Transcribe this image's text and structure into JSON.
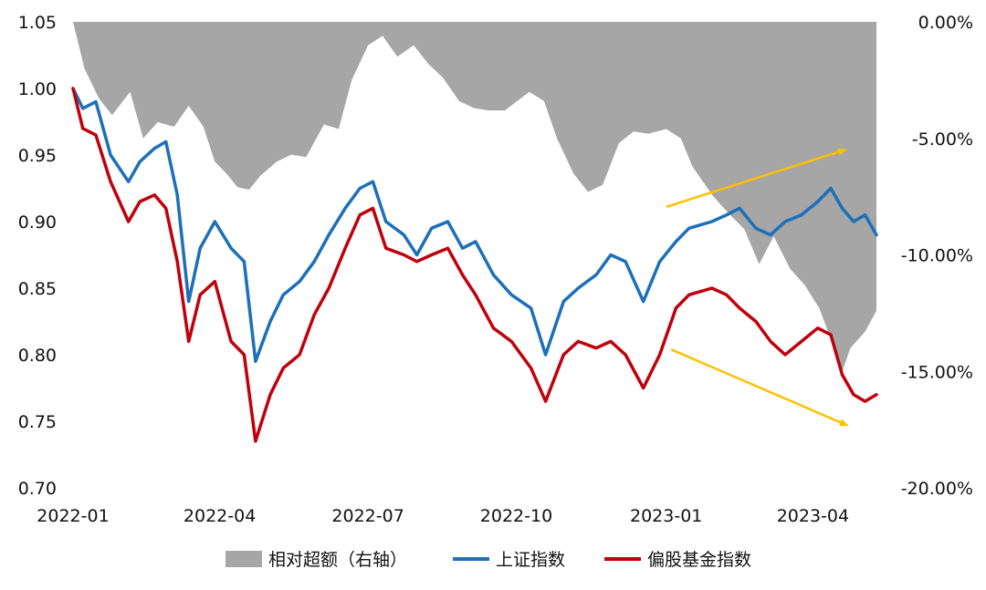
{
  "chart_data": {
    "type": "line",
    "title": "",
    "xlabel": "",
    "ylabel": "",
    "y_left": {
      "min": 0.7,
      "max": 1.05,
      "ticks": [
        "0.70",
        "0.75",
        "0.80",
        "0.85",
        "0.90",
        "0.95",
        "1.00",
        "1.05"
      ]
    },
    "y_right": {
      "min": -20.0,
      "max": 0.0,
      "ticks": [
        "0.00%",
        "-5.00%",
        "-10.00%",
        "-15.00%",
        "-20.00%"
      ]
    },
    "x_range": [
      "2022-01-04",
      "2023-05-12"
    ],
    "x_ticks": [
      {
        "date": "2022-01-04",
        "label": "2022-01"
      },
      {
        "date": "2022-04-04",
        "label": "2022-04"
      },
      {
        "date": "2022-07-04",
        "label": "2022-07"
      },
      {
        "date": "2022-10-03",
        "label": "2022-10"
      },
      {
        "date": "2023-01-03",
        "label": "2023-01"
      },
      {
        "date": "2023-04-03",
        "label": "2023-04"
      }
    ],
    "grid": false,
    "legend_position": "bottom",
    "series": [
      {
        "name": "相对超额（右轴）",
        "type": "area",
        "axis": "right",
        "color": "#a6a6a6",
        "points": [
          [
            "2022-01-04",
            0.0
          ],
          [
            "2022-01-11",
            -2.0
          ],
          [
            "2022-01-20",
            -3.3
          ],
          [
            "2022-01-28",
            -4.0
          ],
          [
            "2022-02-08",
            -3.0
          ],
          [
            "2022-02-16",
            -5.0
          ],
          [
            "2022-02-25",
            -4.3
          ],
          [
            "2022-03-07",
            -4.5
          ],
          [
            "2022-03-16",
            -3.6
          ],
          [
            "2022-03-25",
            -4.5
          ],
          [
            "2022-04-01",
            -6.0
          ],
          [
            "2022-04-08",
            -6.5
          ],
          [
            "2022-04-15",
            -7.1
          ],
          [
            "2022-04-22",
            -7.2
          ],
          [
            "2022-04-29",
            -6.6
          ],
          [
            "2022-05-09",
            -6.0
          ],
          [
            "2022-05-18",
            -5.7
          ],
          [
            "2022-05-27",
            -5.8
          ],
          [
            "2022-06-07",
            -4.4
          ],
          [
            "2022-06-16",
            -4.6
          ],
          [
            "2022-06-24",
            -2.5
          ],
          [
            "2022-07-04",
            -1.0
          ],
          [
            "2022-07-13",
            -0.6
          ],
          [
            "2022-07-22",
            -1.5
          ],
          [
            "2022-08-01",
            -1.0
          ],
          [
            "2022-08-10",
            -1.8
          ],
          [
            "2022-08-19",
            -2.4
          ],
          [
            "2022-08-29",
            -3.4
          ],
          [
            "2022-09-07",
            -3.7
          ],
          [
            "2022-09-16",
            -3.8
          ],
          [
            "2022-09-26",
            -3.8
          ],
          [
            "2022-10-11",
            -3.0
          ],
          [
            "2022-10-20",
            -3.4
          ],
          [
            "2022-10-28",
            -5.0
          ],
          [
            "2022-11-07",
            -6.5
          ],
          [
            "2022-11-16",
            -7.3
          ],
          [
            "2022-11-25",
            -7.0
          ],
          [
            "2022-12-05",
            -5.2
          ],
          [
            "2022-12-14",
            -4.7
          ],
          [
            "2022-12-23",
            -4.8
          ],
          [
            "2023-01-03",
            -4.6
          ],
          [
            "2023-01-12",
            -5.0
          ],
          [
            "2023-01-19",
            -6.2
          ],
          [
            "2023-02-01",
            -7.5
          ],
          [
            "2023-02-10",
            -8.2
          ],
          [
            "2023-02-20",
            -8.9
          ],
          [
            "2023-03-01",
            -10.4
          ],
          [
            "2023-03-10",
            -9.2
          ],
          [
            "2023-03-20",
            -10.6
          ],
          [
            "2023-03-29",
            -11.3
          ],
          [
            "2023-04-07",
            -12.3
          ],
          [
            "2023-04-14",
            -13.6
          ],
          [
            "2023-04-21",
            -15.0
          ],
          [
            "2023-04-26",
            -14.0
          ],
          [
            "2023-05-05",
            -13.3
          ],
          [
            "2023-05-12",
            -12.4
          ]
        ]
      },
      {
        "name": "上证指数",
        "type": "line",
        "axis": "left",
        "color": "#1c6fb9",
        "points": [
          [
            "2022-01-04",
            1.0
          ],
          [
            "2022-01-10",
            0.985
          ],
          [
            "2022-01-18",
            0.99
          ],
          [
            "2022-01-27",
            0.95
          ],
          [
            "2022-02-07",
            0.93
          ],
          [
            "2022-02-14",
            0.945
          ],
          [
            "2022-02-23",
            0.955
          ],
          [
            "2022-03-02",
            0.96
          ],
          [
            "2022-03-09",
            0.92
          ],
          [
            "2022-03-16",
            0.84
          ],
          [
            "2022-03-23",
            0.88
          ],
          [
            "2022-04-01",
            0.9
          ],
          [
            "2022-04-11",
            0.88
          ],
          [
            "2022-04-19",
            0.87
          ],
          [
            "2022-04-26",
            0.795
          ],
          [
            "2022-05-05",
            0.825
          ],
          [
            "2022-05-13",
            0.845
          ],
          [
            "2022-05-23",
            0.855
          ],
          [
            "2022-06-01",
            0.87
          ],
          [
            "2022-06-10",
            0.89
          ],
          [
            "2022-06-20",
            0.91
          ],
          [
            "2022-06-29",
            0.925
          ],
          [
            "2022-07-07",
            0.93
          ],
          [
            "2022-07-15",
            0.9
          ],
          [
            "2022-07-26",
            0.89
          ],
          [
            "2022-08-03",
            0.875
          ],
          [
            "2022-08-12",
            0.895
          ],
          [
            "2022-08-22",
            0.9
          ],
          [
            "2022-08-31",
            0.88
          ],
          [
            "2022-09-08",
            0.885
          ],
          [
            "2022-09-19",
            0.86
          ],
          [
            "2022-09-30",
            0.845
          ],
          [
            "2022-10-12",
            0.835
          ],
          [
            "2022-10-21",
            0.8
          ],
          [
            "2022-11-01",
            0.84
          ],
          [
            "2022-11-10",
            0.85
          ],
          [
            "2022-11-21",
            0.86
          ],
          [
            "2022-11-30",
            0.875
          ],
          [
            "2022-12-09",
            0.87
          ],
          [
            "2022-12-20",
            0.84
          ],
          [
            "2022-12-30",
            0.87
          ],
          [
            "2023-01-09",
            0.885
          ],
          [
            "2023-01-17",
            0.895
          ],
          [
            "2023-01-31",
            0.9
          ],
          [
            "2023-02-09",
            0.905
          ],
          [
            "2023-02-17",
            0.91
          ],
          [
            "2023-02-27",
            0.895
          ],
          [
            "2023-03-08",
            0.89
          ],
          [
            "2023-03-17",
            0.9
          ],
          [
            "2023-03-27",
            0.905
          ],
          [
            "2023-04-06",
            0.915
          ],
          [
            "2023-04-14",
            0.925
          ],
          [
            "2023-04-21",
            0.91
          ],
          [
            "2023-04-28",
            0.9
          ],
          [
            "2023-05-05",
            0.905
          ],
          [
            "2023-05-12",
            0.89
          ]
        ]
      },
      {
        "name": "偏股基金指数",
        "type": "line",
        "axis": "left",
        "color": "#c0000b",
        "points": [
          [
            "2022-01-04",
            1.0
          ],
          [
            "2022-01-10",
            0.97
          ],
          [
            "2022-01-18",
            0.965
          ],
          [
            "2022-01-27",
            0.93
          ],
          [
            "2022-02-07",
            0.9
          ],
          [
            "2022-02-14",
            0.915
          ],
          [
            "2022-02-23",
            0.92
          ],
          [
            "2022-03-02",
            0.91
          ],
          [
            "2022-03-09",
            0.87
          ],
          [
            "2022-03-16",
            0.81
          ],
          [
            "2022-03-23",
            0.845
          ],
          [
            "2022-04-01",
            0.855
          ],
          [
            "2022-04-11",
            0.81
          ],
          [
            "2022-04-19",
            0.8
          ],
          [
            "2022-04-26",
            0.735
          ],
          [
            "2022-05-05",
            0.77
          ],
          [
            "2022-05-13",
            0.79
          ],
          [
            "2022-05-23",
            0.8
          ],
          [
            "2022-06-01",
            0.83
          ],
          [
            "2022-06-10",
            0.85
          ],
          [
            "2022-06-20",
            0.88
          ],
          [
            "2022-06-29",
            0.905
          ],
          [
            "2022-07-07",
            0.91
          ],
          [
            "2022-07-15",
            0.88
          ],
          [
            "2022-07-26",
            0.875
          ],
          [
            "2022-08-03",
            0.87
          ],
          [
            "2022-08-12",
            0.875
          ],
          [
            "2022-08-22",
            0.88
          ],
          [
            "2022-08-31",
            0.86
          ],
          [
            "2022-09-08",
            0.845
          ],
          [
            "2022-09-19",
            0.82
          ],
          [
            "2022-09-30",
            0.81
          ],
          [
            "2022-10-12",
            0.79
          ],
          [
            "2022-10-21",
            0.765
          ],
          [
            "2022-11-01",
            0.8
          ],
          [
            "2022-11-10",
            0.81
          ],
          [
            "2022-11-21",
            0.805
          ],
          [
            "2022-11-30",
            0.81
          ],
          [
            "2022-12-09",
            0.8
          ],
          [
            "2022-12-20",
            0.775
          ],
          [
            "2022-12-30",
            0.8
          ],
          [
            "2023-01-09",
            0.835
          ],
          [
            "2023-01-17",
            0.845
          ],
          [
            "2023-01-31",
            0.85
          ],
          [
            "2023-02-09",
            0.845
          ],
          [
            "2023-02-17",
            0.835
          ],
          [
            "2023-02-27",
            0.825
          ],
          [
            "2023-03-08",
            0.81
          ],
          [
            "2023-03-17",
            0.8
          ],
          [
            "2023-03-27",
            0.81
          ],
          [
            "2023-04-06",
            0.82
          ],
          [
            "2023-04-14",
            0.815
          ],
          [
            "2023-04-21",
            0.785
          ],
          [
            "2023-04-28",
            0.77
          ],
          [
            "2023-05-05",
            0.765
          ],
          [
            "2023-05-12",
            0.77
          ]
        ]
      }
    ],
    "annotations": [
      {
        "type": "arrow",
        "color": "#ffc000",
        "from": [
          "2023-01-03",
          0.911
        ],
        "to": [
          "2023-04-23",
          0.954
        ],
        "direction": "up"
      },
      {
        "type": "arrow",
        "color": "#ffc000",
        "from": [
          "2023-01-06",
          0.804
        ],
        "to": [
          "2023-04-24",
          0.747
        ],
        "direction": "down"
      }
    ]
  }
}
